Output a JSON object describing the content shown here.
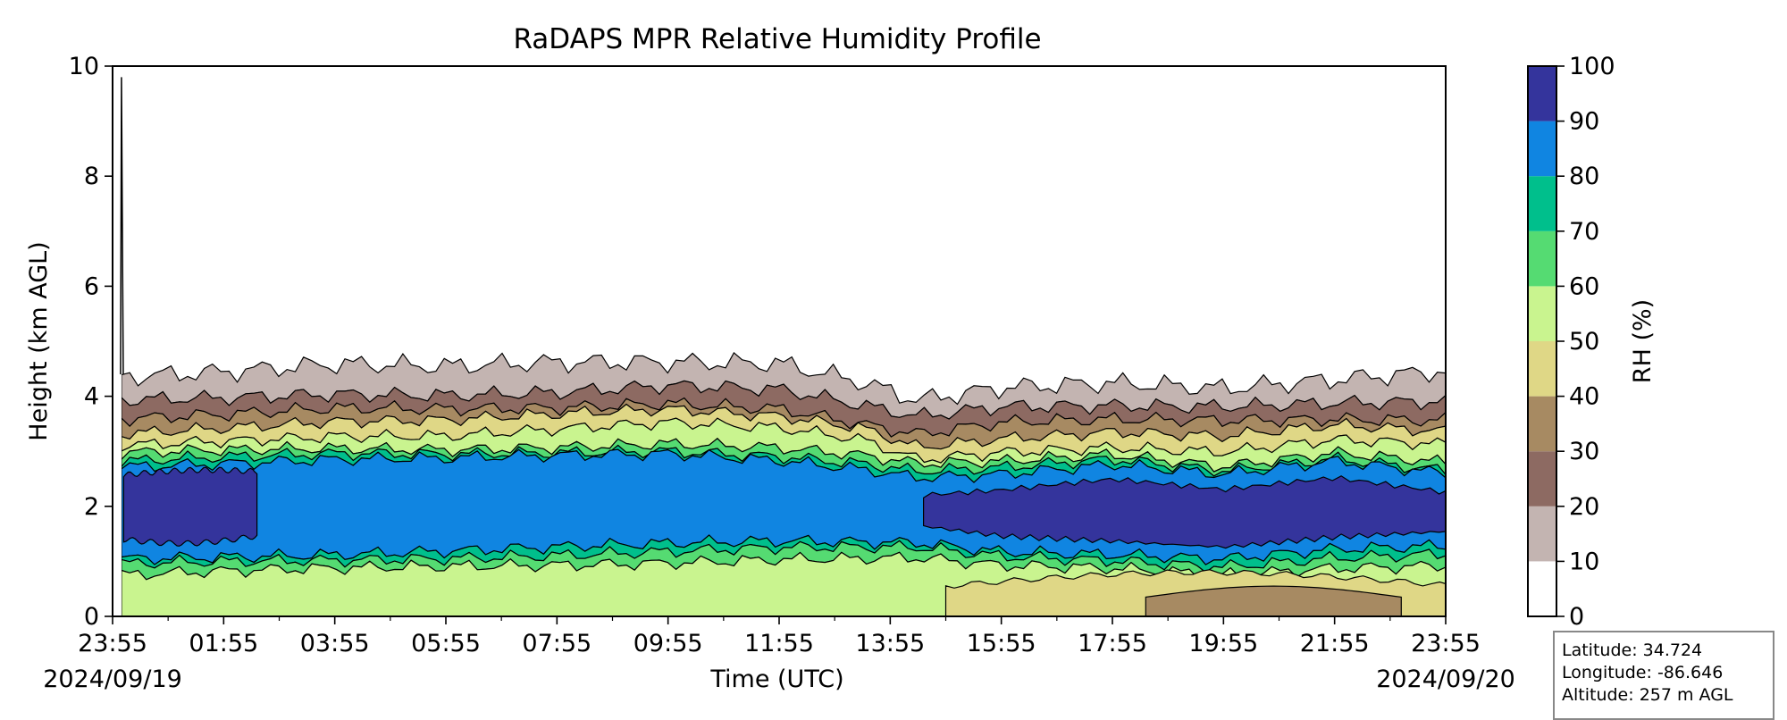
{
  "chart_data": {
    "type": "heatmap",
    "title": "RaDAPS MPR Relative Humidity Profile",
    "xlabel": "Time (UTC)",
    "ylabel": "Height (km AGL)",
    "x_tick_labels": [
      "23:55",
      "01:55",
      "03:55",
      "05:55",
      "07:55",
      "09:55",
      "11:55",
      "13:55",
      "15:55",
      "17:55",
      "19:55",
      "21:55",
      "23:55"
    ],
    "date_start": "2024/09/19",
    "date_end": "2024/09/20",
    "x_range_hours": [
      0,
      24
    ],
    "y_tick_labels": [
      "0",
      "2",
      "4",
      "6",
      "8",
      "10"
    ],
    "ylim": [
      0,
      10
    ],
    "colorbar": {
      "label": "RH (%)",
      "ticks": [
        "0",
        "10",
        "20",
        "30",
        "40",
        "50",
        "60",
        "70",
        "80",
        "90",
        "100"
      ],
      "levels": [
        0,
        10,
        20,
        30,
        40,
        50,
        60,
        70,
        80,
        90,
        100
      ],
      "colors": [
        "#ffffff",
        "#c3b4b1",
        "#8d6a62",
        "#a78a62",
        "#dfd786",
        "#c9f48f",
        "#55db72",
        "#00bf8c",
        "#1085e1",
        "#34349c"
      ]
    },
    "rh_profile_contour_heights_km": {
      "hours": [
        0.25,
        2,
        4,
        6,
        8,
        10,
        12,
        13.5,
        14.5,
        16,
        18,
        20,
        22,
        24
      ],
      "rh_10": [
        4.4,
        4.45,
        4.55,
        4.5,
        4.6,
        4.65,
        4.65,
        4.3,
        3.95,
        4.15,
        4.2,
        4.1,
        4.3,
        4.5
      ],
      "rh_20": [
        3.9,
        3.95,
        4.05,
        4.05,
        4.1,
        4.2,
        4.1,
        3.8,
        3.6,
        3.8,
        3.85,
        3.85,
        3.9,
        3.9
      ],
      "rh_50": [
        3.1,
        3.2,
        3.3,
        3.3,
        3.4,
        3.5,
        3.4,
        3.2,
        2.85,
        3.0,
        3.1,
        3.0,
        3.2,
        3.1
      ],
      "rh_80_top": [
        2.75,
        2.8,
        2.85,
        2.85,
        2.9,
        2.95,
        2.85,
        2.7,
        2.55,
        2.6,
        2.75,
        2.55,
        2.8,
        2.6
      ],
      "rh_80_bottom": [
        1.05,
        1.1,
        1.15,
        1.2,
        1.25,
        1.3,
        1.35,
        1.35,
        1.35,
        1.2,
        1.15,
        1.05,
        1.2,
        1.25
      ]
    }
  },
  "info": {
    "latitude": "Latitude: 34.724",
    "longitude": "Longitude: -86.646",
    "altitude": "Altitude: 257 m AGL"
  }
}
